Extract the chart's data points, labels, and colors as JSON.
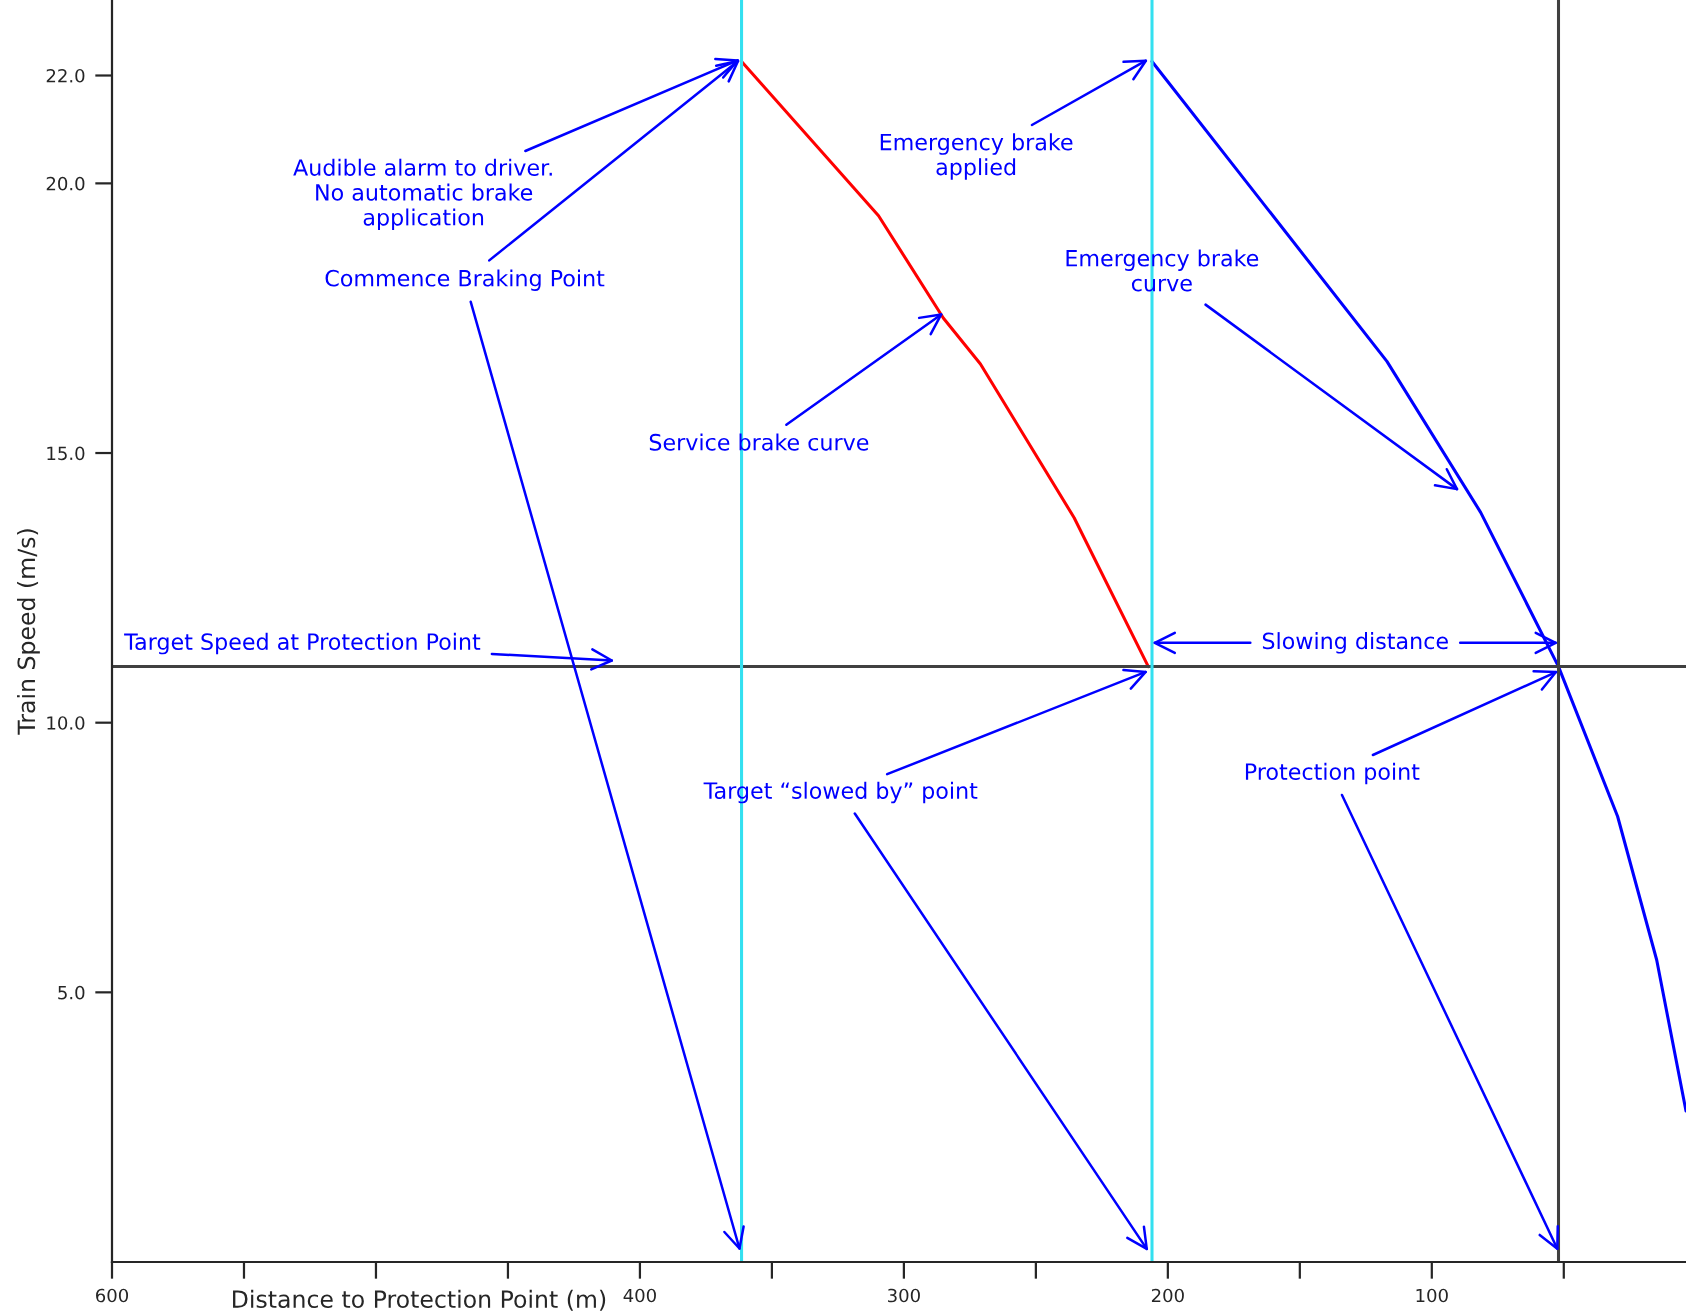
{
  "chart_data": {
    "type": "line",
    "xlabel": "Distance to Protection Point (m)",
    "ylabel": "Train Speed (m/s)",
    "xlim": [
      600,
      3.7
    ],
    "ylim": [
      0,
      23.4
    ],
    "xticks": [
      600,
      {
        "value": 550,
        "label": null
      },
      {
        "value": 500,
        "label": null
      },
      {
        "value": 450,
        "label": null
      },
      400,
      {
        "value": 350,
        "label": null
      },
      300,
      {
        "value": 250,
        "label": null
      },
      200,
      {
        "value": 150,
        "label": null
      },
      100,
      {
        "value": 50,
        "label": null
      }
    ],
    "yticks": [
      {
        "value": 5,
        "label": "5.0"
      },
      {
        "value": 10,
        "label": "10.0"
      },
      {
        "value": 15,
        "label": "15.0"
      },
      {
        "value": 20,
        "label": "20.0"
      },
      {
        "value": 22,
        "label": "22.0"
      }
    ],
    "series": [
      {
        "color": "#ff0000",
        "x": [
          361.5,
          309.6,
          285,
          271,
          235.5,
          207.4
        ],
        "values": [
          22.26,
          19.4,
          17.5,
          16.65,
          13.8,
          11.04
        ]
      },
      {
        "color": "#0000ff",
        "x": [
          206,
          117,
          81.5,
          52,
          29.6,
          14.8,
          3.7
        ],
        "values": [
          22.26,
          16.7,
          13.9,
          11.04,
          8.26,
          5.6,
          2.8
        ]
      }
    ],
    "ref_lines": [
      {
        "axis": "y",
        "value": 11.04,
        "color": "#404040"
      },
      {
        "axis": "x",
        "value": 361.5,
        "color": "#33e0f0"
      },
      {
        "axis": "x",
        "value": 206,
        "color": "#33e0f0"
      },
      {
        "axis": "x",
        "value": 52,
        "color": "#404040"
      }
    ],
    "annotations": [
      {
        "text": "Audible alarm to driver.\nNo automatic brake\napplication",
        "x": 362,
        "y": 22.3
      },
      {
        "text": "Commence Braking Point",
        "x": 362,
        "y": 22.3
      },
      {
        "text": "Service brake curve",
        "x": 285,
        "y": 17.6
      },
      {
        "text": "Target Speed at Protection Point",
        "x": 409.6,
        "y": 11.15
      },
      {
        "text": "Emergency brake\napplied",
        "x": 207.4,
        "y": 22.3
      },
      {
        "text": "Emergency brake\ncurve",
        "x": 89.6,
        "y": 14.3
      },
      {
        "text": "Slowing distance",
        "x": 52,
        "y": 11.48
      },
      {
        "text": "Target “slowed by” point",
        "x": 207.4,
        "y": 10.96
      },
      {
        "text": "Protection point",
        "x": 52,
        "y": 10.96
      }
    ],
    "grid": false,
    "legend": false
  }
}
